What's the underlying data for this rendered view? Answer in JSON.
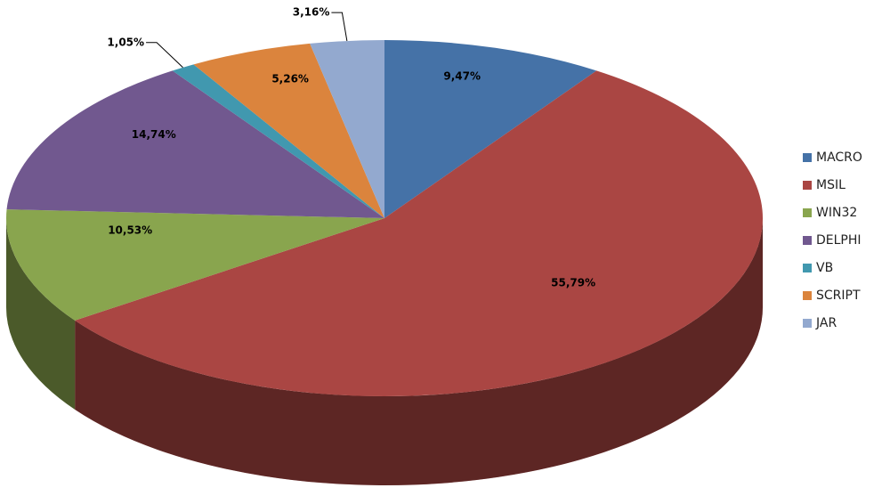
{
  "chart_data": {
    "type": "pie",
    "categories": [
      "MACRO",
      "MSIL",
      "WIN32",
      "DELPHI",
      "VB",
      "SCRIPT",
      "JAR"
    ],
    "values": [
      9.47,
      55.79,
      10.53,
      14.74,
      1.05,
      5.26,
      3.16
    ],
    "value_labels": [
      "9,47%",
      "55,79%",
      "10,53%",
      "14,74%",
      "1,05%",
      "5,26%",
      "3,16%"
    ],
    "colors": [
      "#4572a7",
      "#aa4643",
      "#89a54e",
      "#71588f",
      "#4198af",
      "#db843d",
      "#93a9cf"
    ],
    "legend": "right"
  }
}
